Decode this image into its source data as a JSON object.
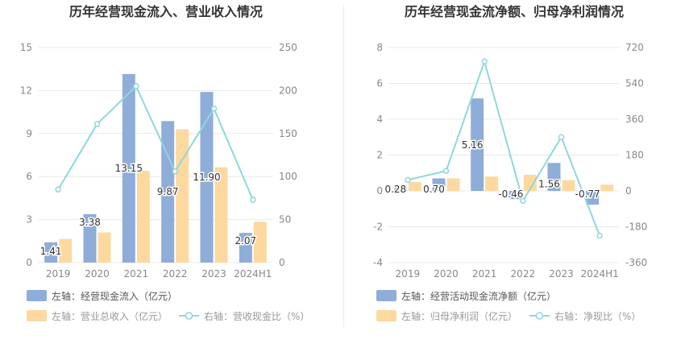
{
  "colors": {
    "blue": "#8fadd9",
    "orange": "#fdd9a0",
    "teal": "#8ed8dc",
    "axis_text": "#888888",
    "grid": "#e8e8e8",
    "title": "#333333",
    "legend_text": "#555555",
    "legend_muted": "#999999"
  },
  "chart_data": [
    {
      "type": "bar",
      "title": "历年经营现金流入、营业收入情况",
      "categories": [
        "2019",
        "2020",
        "2021",
        "2022",
        "2023",
        "2024H1"
      ],
      "left_axis": {
        "min": 0,
        "max": 15,
        "ticks": [
          "0",
          "3",
          "6",
          "9",
          "12",
          "15"
        ]
      },
      "right_axis": {
        "min": 0,
        "max": 250,
        "ticks": [
          "0",
          "50",
          "100",
          "150",
          "200",
          "250"
        ]
      },
      "series": [
        {
          "name": "左轴：经营现金流入（亿元）",
          "type": "bar",
          "axis": "left",
          "values": [
            1.41,
            3.38,
            13.15,
            9.87,
            11.9,
            2.07
          ],
          "labels": [
            "1.41",
            "3.38",
            "13.15",
            "9.87",
            "11.90",
            "2.07"
          ]
        },
        {
          "name": "左轴：营业总收入（亿元）",
          "type": "bar",
          "axis": "left",
          "values": [
            1.65,
            2.1,
            6.4,
            9.3,
            6.65,
            2.85
          ]
        },
        {
          "name": "右轴：营收现金比（%）",
          "type": "line",
          "axis": "right",
          "values": [
            85,
            161,
            205,
            106,
            179,
            73
          ]
        }
      ],
      "grid": true,
      "legend_position": "bottom-left"
    },
    {
      "type": "bar",
      "title": "历年经营现金流净额、归母净利润情况",
      "categories": [
        "2019",
        "2020",
        "2021",
        "2022",
        "2023",
        "2024H1"
      ],
      "left_axis": {
        "min": -4,
        "max": 8,
        "ticks": [
          "-4",
          "-2",
          "0",
          "2",
          "4",
          "6",
          "8"
        ]
      },
      "right_axis": {
        "min": -360,
        "max": 720,
        "ticks": [
          "-360",
          "-180",
          "0",
          "180",
          "360",
          "540",
          "720"
        ]
      },
      "series": [
        {
          "name": "左轴：经营活动现金流净额（亿元）",
          "type": "bar",
          "axis": "left",
          "values": [
            0.28,
            0.7,
            5.16,
            -0.46,
            1.56,
            -0.77
          ],
          "labels": [
            "0.28",
            "0.70",
            "5.16",
            "-0.46",
            "1.56",
            "-0.77"
          ]
        },
        {
          "name": "左轴：归母净利润（亿元）",
          "type": "bar",
          "axis": "left",
          "values": [
            0.5,
            0.7,
            0.8,
            0.9,
            0.6,
            0.35
          ]
        },
        {
          "name": "右轴：净现比（%）",
          "type": "line",
          "axis": "right",
          "values": [
            55,
            100,
            650,
            -50,
            270,
            -225
          ]
        }
      ],
      "grid": true,
      "legend_position": "bottom-left"
    }
  ]
}
